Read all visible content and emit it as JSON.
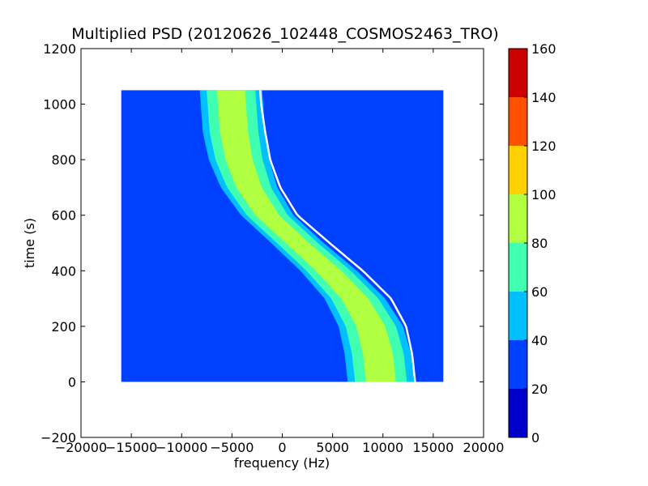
{
  "chart_data": {
    "type": "heatmap",
    "title": "Multiplied PSD (20120626_102448_COSMOS2463_TRO)",
    "xlabel": "frequency (Hz)",
    "ylabel": "time (s)",
    "xlim": [
      -20000,
      20000
    ],
    "ylim": [
      -200,
      1200
    ],
    "x_ticks": [
      -20000,
      -15000,
      -10000,
      -5000,
      0,
      5000,
      10000,
      15000,
      20000
    ],
    "y_ticks": [
      -200,
      0,
      200,
      400,
      600,
      800,
      1000,
      1200
    ],
    "data_extent": {
      "x": [
        -16000,
        16000
      ],
      "y": [
        0,
        1050
      ]
    },
    "colorbar": {
      "range": [
        0,
        160
      ],
      "ticks": [
        0,
        20,
        40,
        60,
        80,
        100,
        120,
        140,
        160
      ],
      "colors": [
        "#0000cd",
        "#0040ff",
        "#00c0ff",
        "#40ffb0",
        "#b0ff40",
        "#ffd000",
        "#ff5000",
        "#cd0000"
      ]
    },
    "background_level": 25,
    "signal_trace": {
      "description_free": true,
      "time": [
        0,
        100,
        200,
        300,
        400,
        500,
        600,
        700,
        800,
        900,
        1000,
        1050
      ],
      "center_frequency": [
        9800,
        9500,
        8800,
        7200,
        4600,
        1500,
        -1500,
        -3300,
        -4300,
        -4800,
        -5000,
        -5100
      ],
      "band_half_width": [
        3300,
        3300,
        3200,
        3000,
        2800,
        2600,
        2600,
        2800,
        3000,
        3100,
        3100,
        3100
      ],
      "peak_level": 85
    },
    "bright_edge": {
      "time": [
        0,
        100,
        200,
        300,
        400,
        500,
        600,
        700,
        800,
        900,
        1000,
        1050
      ],
      "frequency": [
        13200,
        12900,
        12300,
        10800,
        8000,
        4700,
        1500,
        -200,
        -1200,
        -1700,
        -2100,
        -2200
      ]
    }
  }
}
